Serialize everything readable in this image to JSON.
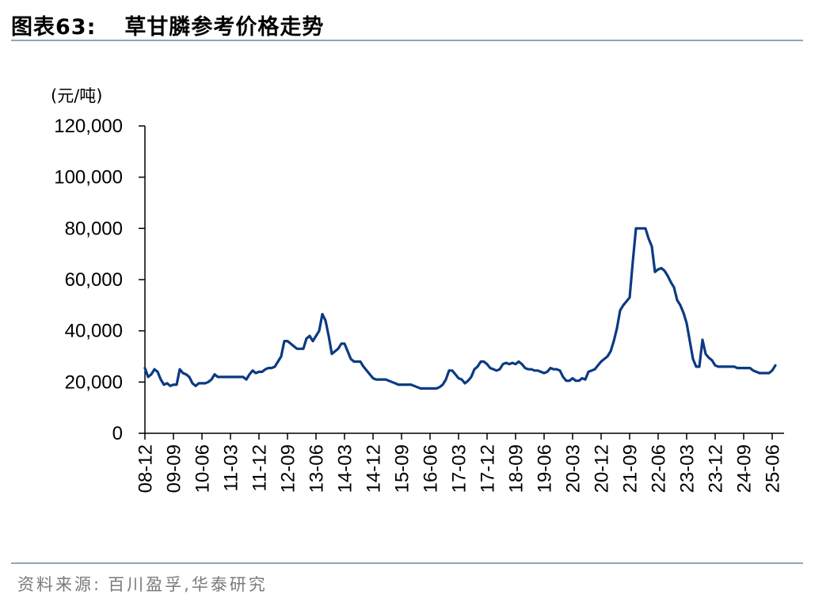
{
  "header": {
    "figure_label": "图表63:",
    "title": "草甘膦参考价格走势"
  },
  "footer": {
    "source_label": "资料来源:",
    "source_text": "百川盈孚,华泰研究"
  },
  "colors": {
    "line": "#0b3a82",
    "axis": "#000000",
    "rule": "#8ea6bf",
    "source_text": "#7a7a7a"
  },
  "chart_data": {
    "type": "line",
    "title": "草甘膦参考价格走势",
    "ylabel": "(元/吨)",
    "xlabel": "",
    "ylim": [
      0,
      120000
    ],
    "grid": false,
    "legend": "none",
    "y_ticks": [
      "0",
      "20,000",
      "40,000",
      "60,000",
      "80,000",
      "100,000",
      "120,000"
    ],
    "x_tick_labels": [
      "08-12",
      "09-09",
      "10-06",
      "11-03",
      "11-12",
      "12-09",
      "13-06",
      "14-03",
      "14-12",
      "15-09",
      "16-06",
      "17-03",
      "17-12",
      "18-09",
      "19-06",
      "20-03",
      "20-12",
      "21-09",
      "22-06",
      "23-03",
      "23-12",
      "24-09",
      "25-06"
    ],
    "series": [
      {
        "points": [
          [
            "2008-12",
            25500
          ],
          [
            "2009-01",
            22000
          ],
          [
            "2009-02",
            23000
          ],
          [
            "2009-03",
            25000
          ],
          [
            "2009-04",
            24000
          ],
          [
            "2009-05",
            21000
          ],
          [
            "2009-06",
            19000
          ],
          [
            "2009-07",
            19500
          ],
          [
            "2009-08",
            18500
          ],
          [
            "2009-09",
            19000
          ],
          [
            "2009-10",
            19000
          ],
          [
            "2009-11",
            25000
          ],
          [
            "2009-12",
            23500
          ],
          [
            "2010-01",
            23000
          ],
          [
            "2010-02",
            22000
          ],
          [
            "2010-03",
            19500
          ],
          [
            "2010-04",
            18500
          ],
          [
            "2010-05",
            19500
          ],
          [
            "2010-06",
            19500
          ],
          [
            "2010-07",
            19500
          ],
          [
            "2010-08",
            20000
          ],
          [
            "2010-09",
            21000
          ],
          [
            "2010-10",
            23000
          ],
          [
            "2010-11",
            22000
          ],
          [
            "2010-12",
            22000
          ],
          [
            "2011-01",
            22000
          ],
          [
            "2011-02",
            22000
          ],
          [
            "2011-03",
            22000
          ],
          [
            "2011-04",
            22000
          ],
          [
            "2011-05",
            22000
          ],
          [
            "2011-06",
            22000
          ],
          [
            "2011-07",
            22000
          ],
          [
            "2011-08",
            21000
          ],
          [
            "2011-09",
            23000
          ],
          [
            "2011-10",
            24500
          ],
          [
            "2011-11",
            23500
          ],
          [
            "2011-12",
            24000
          ],
          [
            "2012-01",
            24000
          ],
          [
            "2012-02",
            25000
          ],
          [
            "2012-03",
            25500
          ],
          [
            "2012-04",
            25500
          ],
          [
            "2012-05",
            26000
          ],
          [
            "2012-06",
            28000
          ],
          [
            "2012-07",
            30000
          ],
          [
            "2012-08",
            36000
          ],
          [
            "2012-09",
            36000
          ],
          [
            "2012-10",
            35000
          ],
          [
            "2012-11",
            34000
          ],
          [
            "2012-12",
            33000
          ],
          [
            "2013-01",
            33000
          ],
          [
            "2013-02",
            33000
          ],
          [
            "2013-03",
            37000
          ],
          [
            "2013-04",
            38000
          ],
          [
            "2013-05",
            36000
          ],
          [
            "2013-06",
            38000
          ],
          [
            "2013-07",
            40000
          ],
          [
            "2013-08",
            46500
          ],
          [
            "2013-09",
            44000
          ],
          [
            "2013-10",
            38000
          ],
          [
            "2013-11",
            31000
          ],
          [
            "2013-12",
            32000
          ],
          [
            "2014-01",
            33000
          ],
          [
            "2014-02",
            35000
          ],
          [
            "2014-03",
            35000
          ],
          [
            "2014-04",
            32000
          ],
          [
            "2014-05",
            29000
          ],
          [
            "2014-06",
            28000
          ],
          [
            "2014-07",
            28000
          ],
          [
            "2014-08",
            28000
          ],
          [
            "2014-09",
            26000
          ],
          [
            "2014-10",
            24500
          ],
          [
            "2014-11",
            23000
          ],
          [
            "2014-12",
            21500
          ],
          [
            "2015-01",
            21000
          ],
          [
            "2015-02",
            21000
          ],
          [
            "2015-03",
            21000
          ],
          [
            "2015-04",
            21000
          ],
          [
            "2015-05",
            20500
          ],
          [
            "2015-06",
            20000
          ],
          [
            "2015-07",
            19500
          ],
          [
            "2015-08",
            19000
          ],
          [
            "2015-09",
            19000
          ],
          [
            "2015-10",
            19000
          ],
          [
            "2015-11",
            19000
          ],
          [
            "2015-12",
            19000
          ],
          [
            "2016-01",
            18500
          ],
          [
            "2016-02",
            18000
          ],
          [
            "2016-03",
            17500
          ],
          [
            "2016-04",
            17500
          ],
          [
            "2016-05",
            17500
          ],
          [
            "2016-06",
            17500
          ],
          [
            "2016-07",
            17500
          ],
          [
            "2016-08",
            17500
          ],
          [
            "2016-09",
            18000
          ],
          [
            "2016-10",
            19000
          ],
          [
            "2016-11",
            21000
          ],
          [
            "2016-12",
            24500
          ],
          [
            "2017-01",
            24500
          ],
          [
            "2017-02",
            23000
          ],
          [
            "2017-03",
            21500
          ],
          [
            "2017-04",
            21000
          ],
          [
            "2017-05",
            19500
          ],
          [
            "2017-06",
            20500
          ],
          [
            "2017-07",
            22000
          ],
          [
            "2017-08",
            25000
          ],
          [
            "2017-09",
            26000
          ],
          [
            "2017-10",
            28000
          ],
          [
            "2017-11",
            28000
          ],
          [
            "2017-12",
            27000
          ],
          [
            "2018-01",
            25500
          ],
          [
            "2018-02",
            25000
          ],
          [
            "2018-03",
            24500
          ],
          [
            "2018-04",
            25000
          ],
          [
            "2018-05",
            27000
          ],
          [
            "2018-06",
            27500
          ],
          [
            "2018-07",
            27000
          ],
          [
            "2018-08",
            27500
          ],
          [
            "2018-09",
            27000
          ],
          [
            "2018-10",
            28000
          ],
          [
            "2018-11",
            27000
          ],
          [
            "2018-12",
            25500
          ],
          [
            "2019-01",
            25000
          ],
          [
            "2019-02",
            25000
          ],
          [
            "2019-03",
            24500
          ],
          [
            "2019-04",
            24500
          ],
          [
            "2019-05",
            24000
          ],
          [
            "2019-06",
            23500
          ],
          [
            "2019-07",
            24000
          ],
          [
            "2019-08",
            25500
          ],
          [
            "2019-09",
            25000
          ],
          [
            "2019-10",
            25000
          ],
          [
            "2019-11",
            24500
          ],
          [
            "2019-12",
            22000
          ],
          [
            "2020-01",
            20500
          ],
          [
            "2020-02",
            20500
          ],
          [
            "2020-03",
            21500
          ],
          [
            "2020-04",
            20500
          ],
          [
            "2020-05",
            20500
          ],
          [
            "2020-06",
            21500
          ],
          [
            "2020-07",
            21000
          ],
          [
            "2020-08",
            24000
          ],
          [
            "2020-09",
            24500
          ],
          [
            "2020-10",
            25000
          ],
          [
            "2020-11",
            26500
          ],
          [
            "2020-12",
            28000
          ],
          [
            "2021-01",
            29000
          ],
          [
            "2021-02",
            30000
          ],
          [
            "2021-03",
            32000
          ],
          [
            "2021-04",
            36000
          ],
          [
            "2021-05",
            41000
          ],
          [
            "2021-06",
            48000
          ],
          [
            "2021-07",
            50000
          ],
          [
            "2021-08",
            51500
          ],
          [
            "2021-09",
            53000
          ],
          [
            "2021-10",
            67000
          ],
          [
            "2021-11",
            80000
          ],
          [
            "2021-12",
            80000
          ],
          [
            "2022-01",
            80000
          ],
          [
            "2022-02",
            80000
          ],
          [
            "2022-03",
            76000
          ],
          [
            "2022-04",
            73000
          ],
          [
            "2022-05",
            63000
          ],
          [
            "2022-06",
            64000
          ],
          [
            "2022-07",
            64500
          ],
          [
            "2022-08",
            63500
          ],
          [
            "2022-09",
            61500
          ],
          [
            "2022-10",
            59000
          ],
          [
            "2022-11",
            57000
          ],
          [
            "2022-12",
            52000
          ],
          [
            "2023-01",
            50000
          ],
          [
            "2023-02",
            47000
          ],
          [
            "2023-03",
            43000
          ],
          [
            "2023-04",
            36000
          ],
          [
            "2023-05",
            29000
          ],
          [
            "2023-06",
            26000
          ],
          [
            "2023-07",
            26000
          ],
          [
            "2023-08",
            36500
          ],
          [
            "2023-09",
            31000
          ],
          [
            "2023-10",
            29500
          ],
          [
            "2023-11",
            28500
          ],
          [
            "2023-12",
            26500
          ],
          [
            "2024-01",
            26000
          ],
          [
            "2024-02",
            26000
          ],
          [
            "2024-03",
            26000
          ],
          [
            "2024-04",
            26000
          ],
          [
            "2024-05",
            26000
          ],
          [
            "2024-06",
            26000
          ],
          [
            "2024-07",
            25500
          ],
          [
            "2024-08",
            25500
          ],
          [
            "2024-09",
            25500
          ],
          [
            "2024-10",
            25500
          ],
          [
            "2024-11",
            25500
          ],
          [
            "2024-12",
            24500
          ],
          [
            "2025-01",
            24000
          ],
          [
            "2025-02",
            23500
          ],
          [
            "2025-03",
            23500
          ],
          [
            "2025-04",
            23500
          ],
          [
            "2025-05",
            23500
          ],
          [
            "2025-06",
            24500
          ],
          [
            "2025-07",
            26500
          ]
        ]
      }
    ]
  }
}
